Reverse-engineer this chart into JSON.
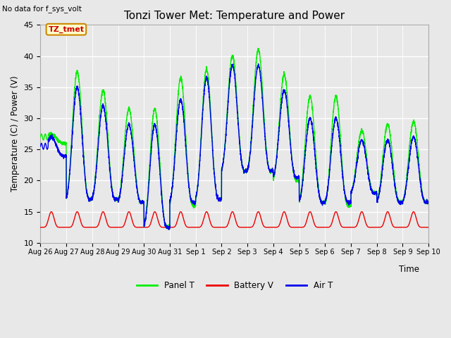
{
  "title": "Tonzi Tower Met: Temperature and Power",
  "xlabel": "Time",
  "ylabel": "Temperature (C) / Power (V)",
  "ylim": [
    10,
    45
  ],
  "yticks": [
    10,
    15,
    20,
    25,
    30,
    35,
    40,
    45
  ],
  "x_labels": [
    "Aug 26",
    "Aug 27",
    "Aug 28",
    "Aug 29",
    "Aug 30",
    "Aug 31",
    "Sep 1",
    "Sep 2",
    "Sep 3",
    "Sep 4",
    "Sep 5",
    "Sep 6",
    "Sep 7",
    "Sep 8",
    "Sep 9",
    "Sep 10"
  ],
  "note": "No data for f_sys_volt",
  "annotation": "TZ_tmet",
  "annotation_fg": "#cc0000",
  "annotation_bg": "#ffffcc",
  "annotation_edge": "#cc8800",
  "panel_t_color": "#00ee00",
  "battery_v_color": "#ee0000",
  "air_t_color": "#0000ee",
  "fig_bg_color": "#e8e8e8",
  "plot_bg_color": "#e8e8e8",
  "grid_color": "white",
  "title_fontsize": 11,
  "legend_labels": [
    "Panel T",
    "Battery V",
    "Air T"
  ],
  "n_days": 15,
  "figwidth": 6.4,
  "figheight": 4.8,
  "dpi": 100
}
